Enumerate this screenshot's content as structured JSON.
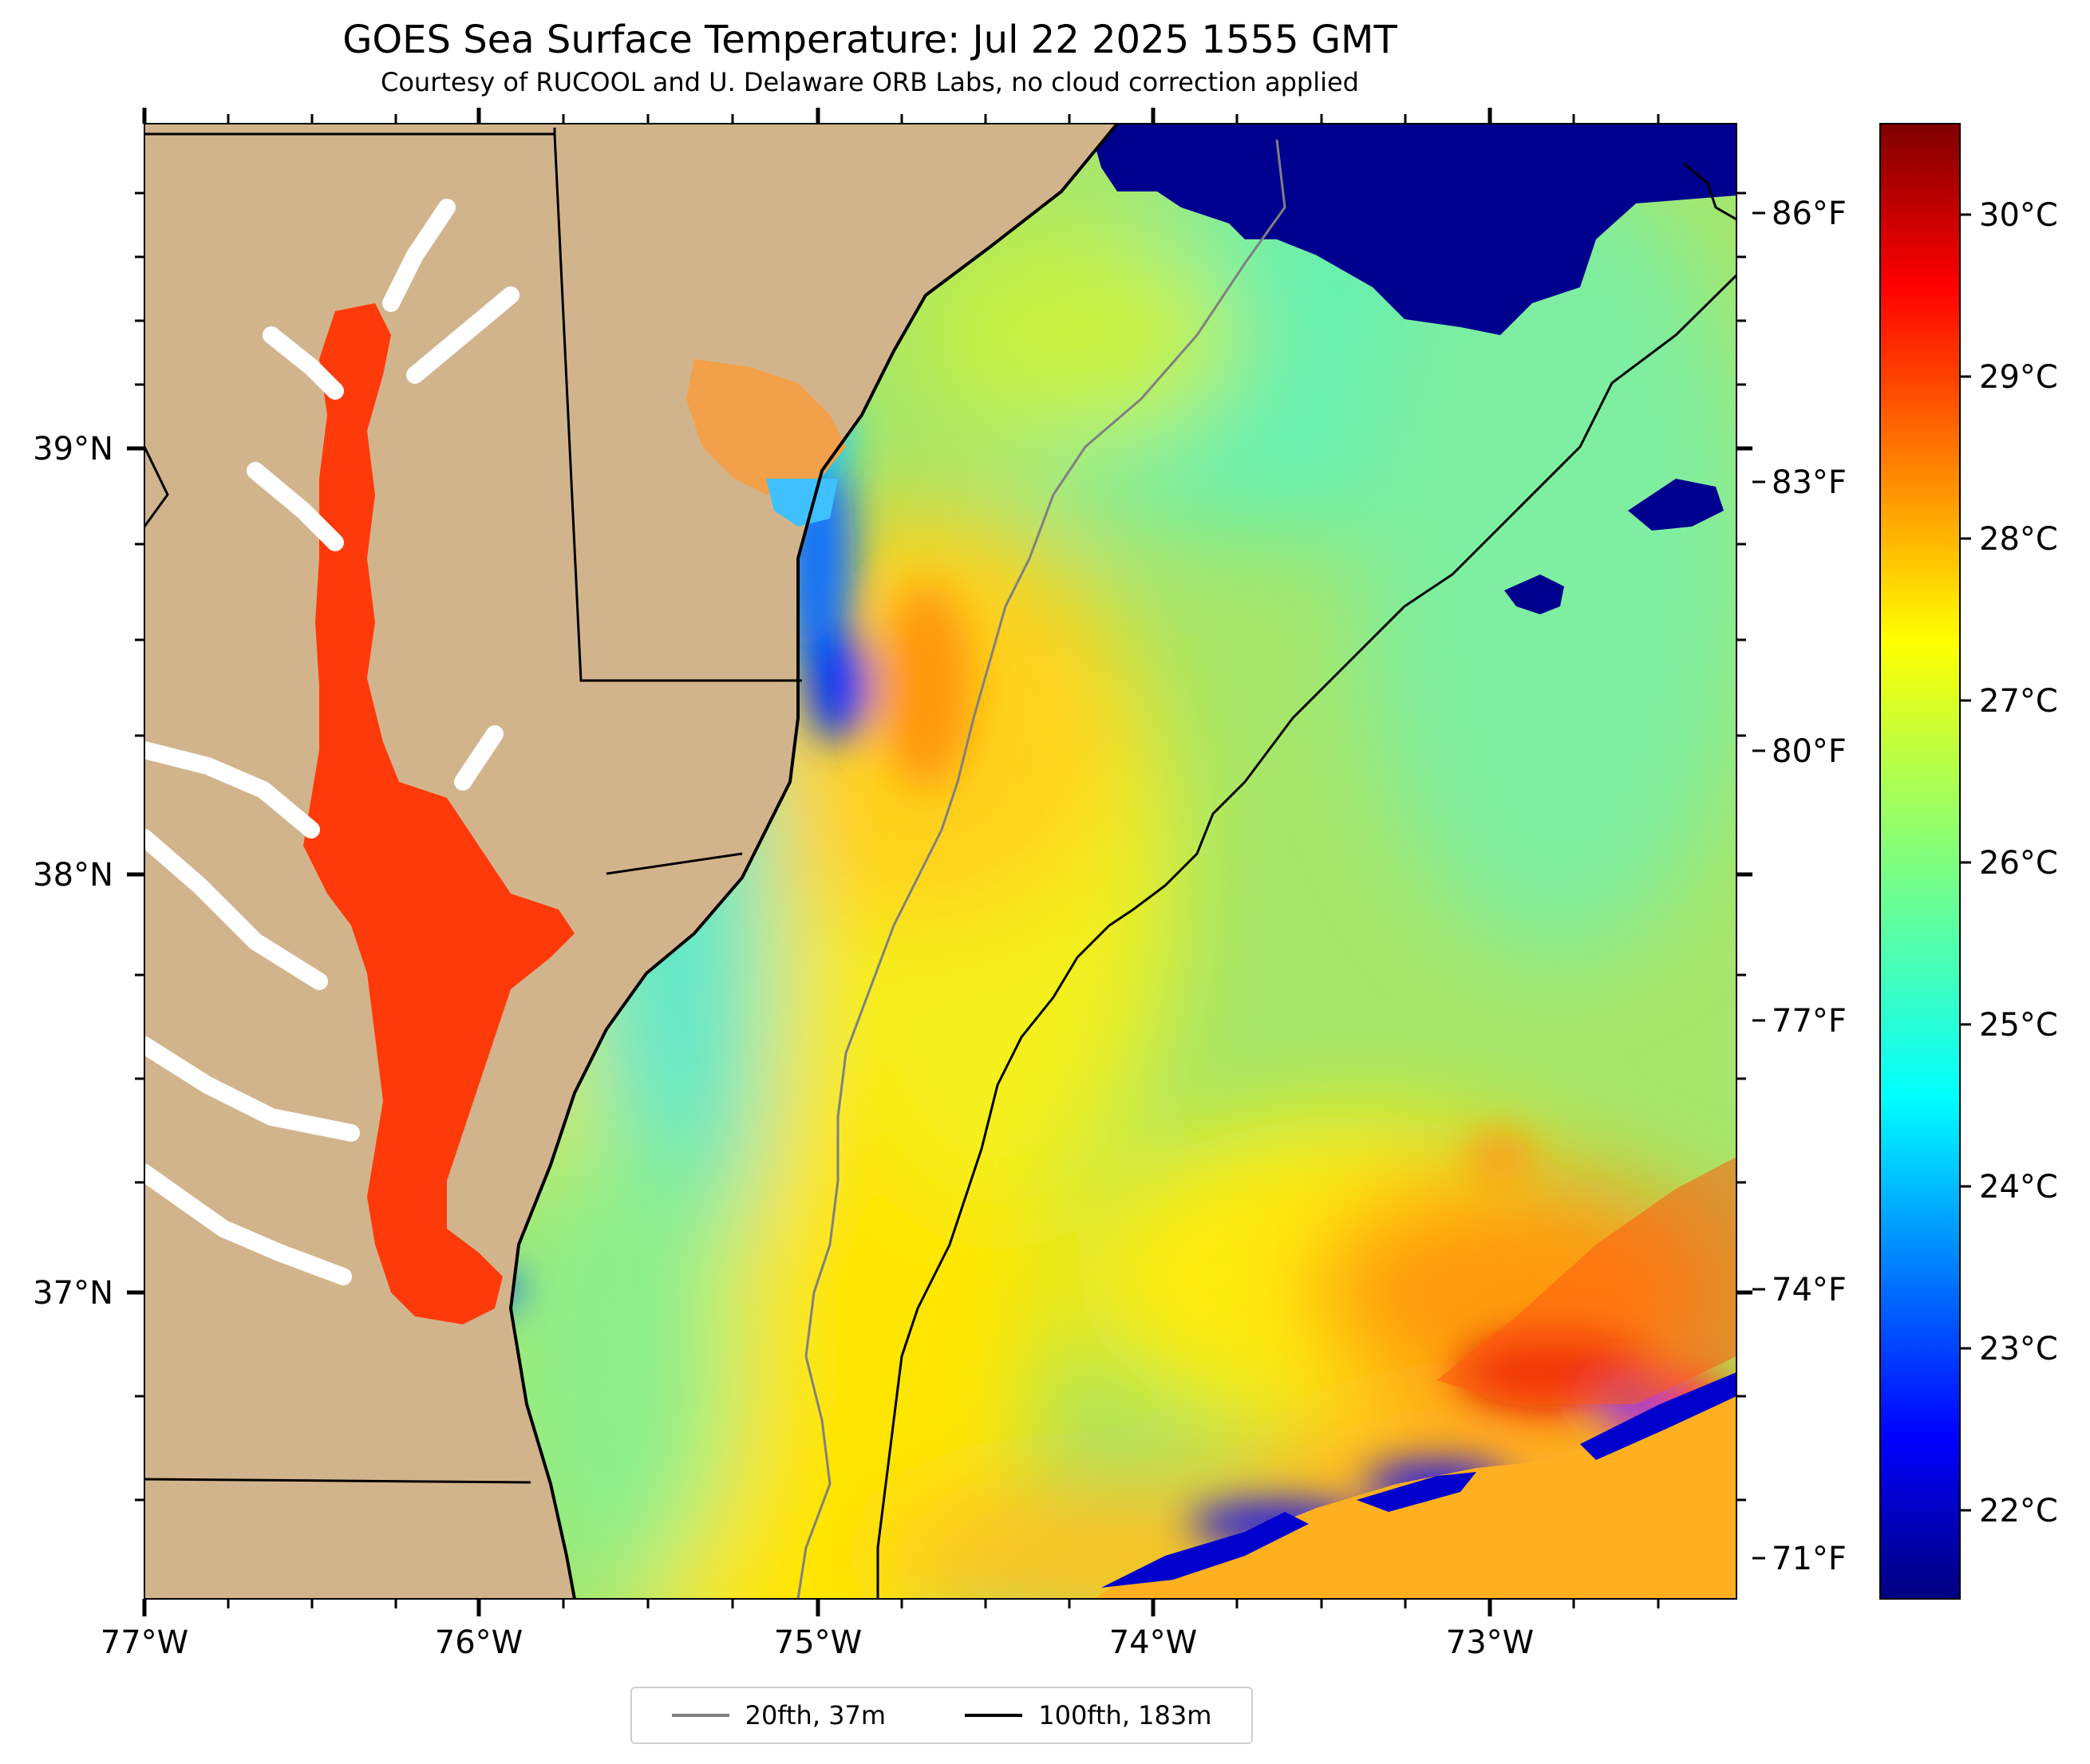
{
  "title": "GOES Sea Surface Temperature: Jul 22 2025 1555 GMT",
  "subtitle": "Courtesy of RUCOOL and U. Delaware ORB Labs, no cloud correction applied",
  "map": {
    "lon_labels": [
      "77°W",
      "76°W",
      "75°W",
      "74°W",
      "73°W"
    ],
    "lat_labels": [
      "39°N",
      "38°N",
      "37°N"
    ],
    "fahrenheit_labels": [
      "86°F",
      "83°F",
      "80°F",
      "77°F",
      "74°F",
      "71°F"
    ],
    "colors": {
      "land": "#d2b48c",
      "bay_warm": "#ff3a0a",
      "ocean_base": "#9be06a",
      "cold": "#00008f",
      "contour_20fth": "#808080",
      "contour_100fth": "#000000",
      "border": "#000000"
    }
  },
  "colorbar": {
    "labels": [
      "30°C",
      "29°C",
      "28°C",
      "27°C",
      "26°C",
      "25°C",
      "24°C",
      "23°C",
      "22°C"
    ],
    "colormap": "jet",
    "range_c": [
      21.5,
      30.5
    ]
  },
  "legend": {
    "items": [
      {
        "label": "20fth, 37m",
        "color": "#808080"
      },
      {
        "label": "100fth, 183m",
        "color": "#000000"
      }
    ]
  }
}
